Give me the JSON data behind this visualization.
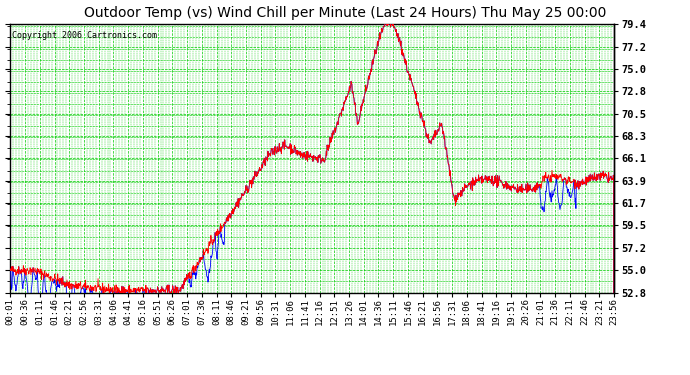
{
  "title": "Outdoor Temp (vs) Wind Chill per Minute (Last 24 Hours) Thu May 25 00:00",
  "copyright": "Copyright 2006 Cartronics.com",
  "bg_color": "#ffffff",
  "plot_bg_color": "#ffffff",
  "grid_color": "#00cc00",
  "line_color_temp": "#ff0000",
  "line_color_chill": "#0000ff",
  "yticks": [
    52.8,
    55.0,
    57.2,
    59.5,
    61.7,
    63.9,
    66.1,
    68.3,
    70.5,
    72.8,
    75.0,
    77.2,
    79.4
  ],
  "ymin": 52.8,
  "ymax": 79.4,
  "x_labels": [
    "00:01",
    "00:36",
    "01:11",
    "01:46",
    "02:21",
    "02:56",
    "03:31",
    "04:06",
    "04:41",
    "05:16",
    "05:51",
    "06:26",
    "07:01",
    "07:36",
    "08:11",
    "08:46",
    "09:21",
    "09:56",
    "10:31",
    "11:06",
    "11:41",
    "12:16",
    "12:51",
    "13:26",
    "14:01",
    "14:36",
    "15:11",
    "15:46",
    "16:21",
    "16:56",
    "17:31",
    "18:06",
    "18:41",
    "19:16",
    "19:51",
    "20:26",
    "21:01",
    "21:36",
    "22:11",
    "22:46",
    "23:21",
    "23:56"
  ],
  "title_fontsize": 10,
  "copyright_fontsize": 6,
  "tick_fontsize": 6.5,
  "ytick_fontsize": 7.5
}
